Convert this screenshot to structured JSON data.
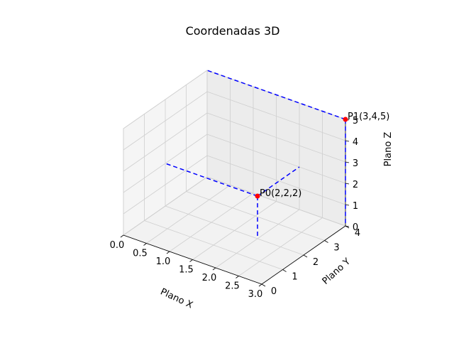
{
  "chart_data": {
    "type": "scatter",
    "projection": "3d",
    "title": "Coordenadas 3D",
    "xlabel": "Plano X",
    "ylabel": "Plano Y",
    "zlabel": "Plano Z",
    "xlim": [
      0,
      3
    ],
    "ylim": [
      0,
      4
    ],
    "zlim": [
      0,
      5
    ],
    "xticks": [
      "0.0",
      "0.5",
      "1.0",
      "1.5",
      "2.0",
      "2.5",
      "3.0"
    ],
    "yticks": [
      "0",
      "1",
      "2",
      "3",
      "4"
    ],
    "zticks": [
      "0",
      "1",
      "2",
      "3",
      "4",
      "5"
    ],
    "grid": true,
    "points": [
      {
        "label": "P0(2,2,2)",
        "x": 2,
        "y": 2,
        "z": 2,
        "color": "#ff0000"
      },
      {
        "label": "P1(3,4,5)",
        "x": 3,
        "y": 4,
        "z": 5,
        "color": "#ff0000"
      }
    ],
    "projection_lines": {
      "style": "dashed",
      "color": "#0000ff"
    }
  }
}
